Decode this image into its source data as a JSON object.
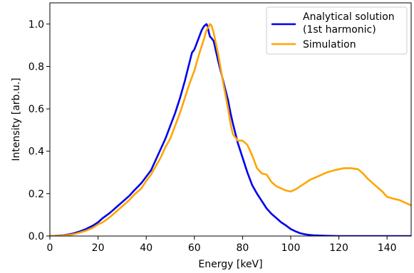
{
  "chart_data": {
    "type": "line",
    "title": "",
    "xlabel": "Energy [keV]",
    "ylabel": "Intensity [arb.u.]",
    "xlim": [
      0,
      150
    ],
    "ylim": [
      0,
      1.1
    ],
    "xticks": [
      0,
      20,
      40,
      60,
      80,
      100,
      120,
      140
    ],
    "yticks": [
      0.0,
      0.2,
      0.4,
      0.6,
      0.8,
      1.0
    ],
    "xtick_labels": [
      "0",
      "20",
      "40",
      "60",
      "80",
      "100",
      "120",
      "140"
    ],
    "ytick_labels": [
      "0.0",
      "0.2",
      "0.4",
      "0.6",
      "0.8",
      "1.0"
    ],
    "grid": false,
    "legend_position": "top-right",
    "series": [
      {
        "name": "Analytical solution\n(1st harmonic)",
        "color": "#0000ee",
        "x": [
          0,
          5,
          8,
          10,
          12,
          15,
          18,
          20,
          22,
          25,
          28,
          30,
          33,
          35,
          38,
          40,
          42,
          44,
          46,
          48,
          50,
          52,
          54,
          56,
          58,
          59,
          60,
          61,
          62,
          63,
          64,
          65,
          65.5,
          66,
          66.5,
          67,
          68,
          69,
          70,
          72,
          74,
          75,
          76,
          78,
          80,
          82,
          84,
          86,
          88,
          90,
          92,
          94,
          96,
          98,
          100,
          102,
          104,
          106,
          108,
          110,
          115,
          120,
          130,
          150
        ],
        "y": [
          0.0,
          0.003,
          0.008,
          0.013,
          0.02,
          0.033,
          0.05,
          0.065,
          0.085,
          0.11,
          0.14,
          0.16,
          0.19,
          0.215,
          0.25,
          0.28,
          0.31,
          0.36,
          0.41,
          0.46,
          0.52,
          0.58,
          0.65,
          0.73,
          0.82,
          0.865,
          0.88,
          0.91,
          0.94,
          0.97,
          0.99,
          1.0,
          0.99,
          0.96,
          0.94,
          0.935,
          0.92,
          0.87,
          0.82,
          0.73,
          0.64,
          0.58,
          0.53,
          0.44,
          0.37,
          0.3,
          0.24,
          0.2,
          0.165,
          0.13,
          0.105,
          0.085,
          0.065,
          0.05,
          0.033,
          0.022,
          0.013,
          0.008,
          0.005,
          0.003,
          0.001,
          0.0,
          0.0,
          0.0
        ]
      },
      {
        "name": "Simulation",
        "color": "#ffa500",
        "x": [
          0,
          5,
          8,
          10,
          12,
          15,
          18,
          20,
          22,
          25,
          28,
          30,
          33,
          35,
          38,
          40,
          42,
          44,
          46,
          48,
          50,
          52,
          54,
          56,
          58,
          60,
          62,
          64,
          65,
          66,
          66.5,
          67,
          68,
          70,
          72,
          74,
          75,
          76,
          78,
          80,
          82,
          84,
          86,
          88,
          90,
          92,
          94,
          96,
          98,
          100,
          102,
          104,
          106,
          108,
          110,
          112,
          115,
          118,
          120,
          122,
          125,
          128,
          130,
          132,
          135,
          138,
          140,
          143,
          145,
          148,
          150
        ],
        "y": [
          0.0,
          0.002,
          0.005,
          0.009,
          0.015,
          0.025,
          0.04,
          0.055,
          0.065,
          0.09,
          0.12,
          0.14,
          0.17,
          0.195,
          0.225,
          0.26,
          0.29,
          0.33,
          0.37,
          0.42,
          0.46,
          0.52,
          0.58,
          0.65,
          0.72,
          0.78,
          0.86,
          0.93,
          0.97,
          0.99,
          1.0,
          0.995,
          0.96,
          0.85,
          0.72,
          0.6,
          0.53,
          0.48,
          0.45,
          0.45,
          0.43,
          0.38,
          0.32,
          0.295,
          0.29,
          0.255,
          0.235,
          0.225,
          0.215,
          0.21,
          0.22,
          0.235,
          0.25,
          0.265,
          0.275,
          0.285,
          0.3,
          0.31,
          0.315,
          0.32,
          0.32,
          0.315,
          0.295,
          0.27,
          0.24,
          0.21,
          0.185,
          0.175,
          0.17,
          0.155,
          0.145
        ]
      }
    ]
  }
}
